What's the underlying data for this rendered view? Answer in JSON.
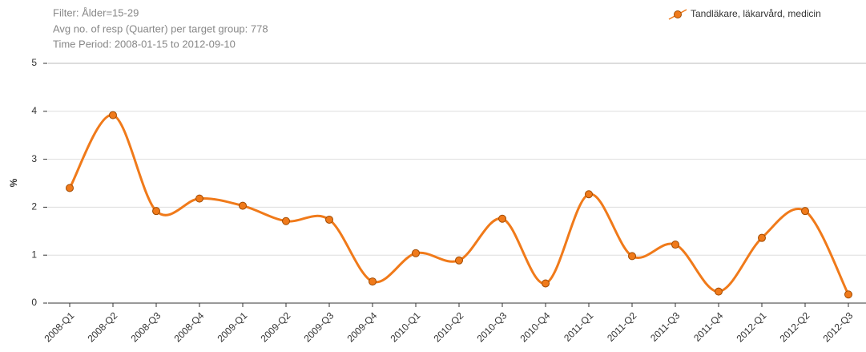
{
  "chart_data": {
    "type": "line",
    "subtitle_lines": [
      "Filter: Ålder=15-29",
      "Avg no. of resp (Quarter) per target group: 778",
      "Time Period: 2008-01-15 to 2012-09-10"
    ],
    "y_label": "%",
    "categories": [
      "2008-Q1",
      "2008-Q2",
      "2008-Q3",
      "2008-Q4",
      "2009-Q1",
      "2009-Q2",
      "2009-Q3",
      "2009-Q4",
      "2010-Q1",
      "2010-Q2",
      "2010-Q3",
      "2010-Q4",
      "2011-Q1",
      "2011-Q2",
      "2011-Q3",
      "2011-Q4",
      "2012-Q1",
      "2012-Q2",
      "2012-Q3"
    ],
    "series": [
      {
        "name": "Tandläkare, läkarvård, medicin",
        "color": "#f07a1a",
        "values": [
          2.4,
          3.92,
          1.92,
          2.18,
          2.03,
          1.71,
          1.74,
          0.45,
          1.04,
          0.89,
          1.76,
          0.41,
          2.27,
          0.98,
          1.22,
          0.24,
          1.36,
          1.92,
          0.18
        ]
      }
    ],
    "ylim": [
      0,
      5
    ],
    "yticks": [
      0,
      1,
      2,
      3,
      4,
      5
    ],
    "grid": true,
    "smooth": true,
    "legend": "top-right"
  }
}
